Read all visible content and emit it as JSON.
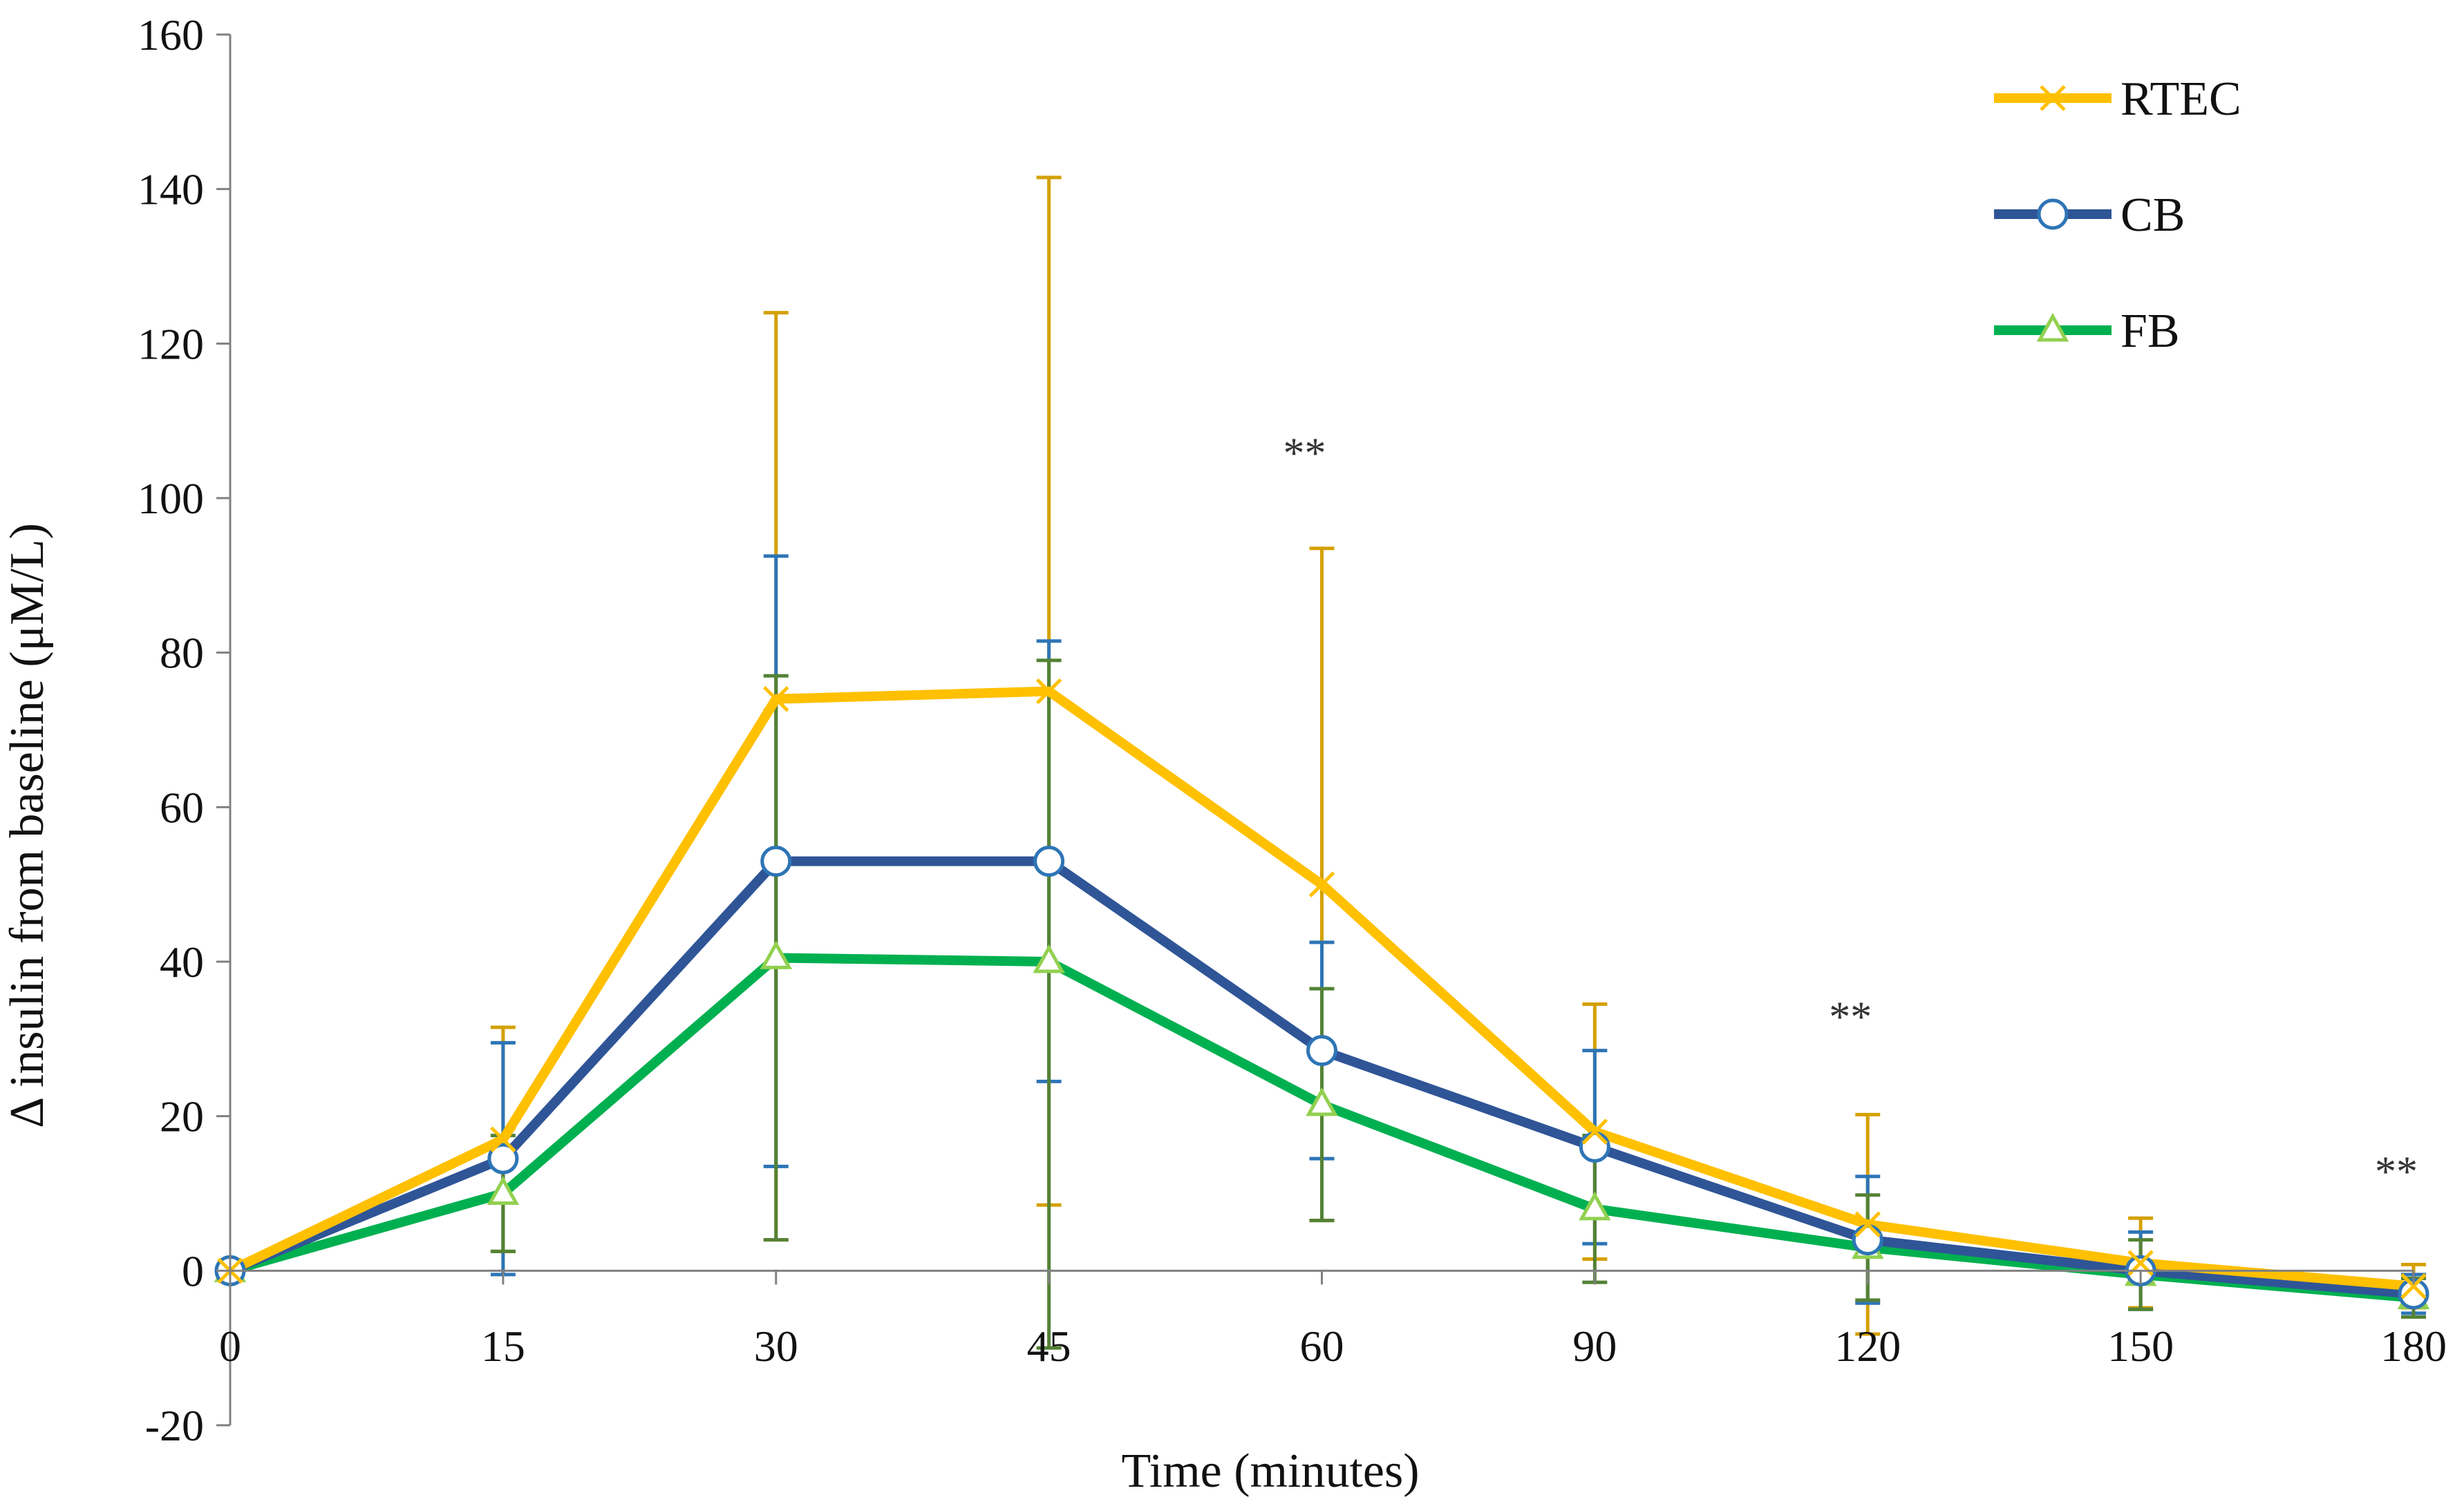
{
  "chart_data": {
    "type": "line",
    "title": "",
    "xlabel": "Time (minutes)",
    "ylabel": "Δ insulin from baseline (μM/L)",
    "categories": [
      "0",
      "15",
      "30",
      "45",
      "60",
      "90",
      "120",
      "150",
      "180"
    ],
    "ylim": [
      -20,
      160
    ],
    "yticks": [
      "-20",
      "0",
      "20",
      "40",
      "60",
      "80",
      "100",
      "120",
      "140",
      "160"
    ],
    "grid": false,
    "legend_position": "top-right",
    "series": [
      {
        "name": "RTEC",
        "color": "#FFC000",
        "errorColor": "#D4A000",
        "marker": "x",
        "values": [
          0,
          17,
          74,
          75,
          50,
          18,
          6,
          1,
          -2
        ],
        "errorUpper": [
          0,
          31.5,
          124,
          141.5,
          93.5,
          34.5,
          20.2,
          6.8,
          0.8
        ],
        "errorLower": [
          0,
          2.5,
          4,
          8.5,
          6.5,
          1.5,
          -8.2,
          -4.8,
          -4.8
        ]
      },
      {
        "name": "CB",
        "color": "#2F5597",
        "errorColor": "#2E75B6",
        "marker": "circle",
        "values": [
          0,
          14.5,
          53,
          53,
          28.5,
          16,
          4,
          0,
          -3
        ],
        "errorUpper": [
          0,
          29.5,
          92.5,
          81.5,
          42.5,
          28.5,
          12.2,
          5,
          -0.5
        ],
        "errorLower": [
          0,
          -0.5,
          13.5,
          24.5,
          14.5,
          3.5,
          -4.2,
          -5,
          -5.5
        ]
      },
      {
        "name": "FB",
        "color": "#00B050",
        "errorColor": "#548235",
        "marker": "triangle",
        "values": [
          0,
          10,
          40.5,
          40,
          21.5,
          8,
          3,
          -0.5,
          -3.5
        ],
        "errorUpper": [
          0,
          17.5,
          77,
          79,
          36.5,
          17.5,
          9.8,
          4,
          -1
        ],
        "errorLower": [
          0,
          2.5,
          4,
          -10,
          6.5,
          -1.5,
          -3.8,
          -5,
          -6
        ]
      }
    ],
    "annotations": [
      {
        "x": "60",
        "y": 104,
        "text": "**"
      },
      {
        "x": "120",
        "y": 31,
        "text": "**"
      },
      {
        "x": "180",
        "y": 11,
        "text": "**"
      }
    ]
  }
}
